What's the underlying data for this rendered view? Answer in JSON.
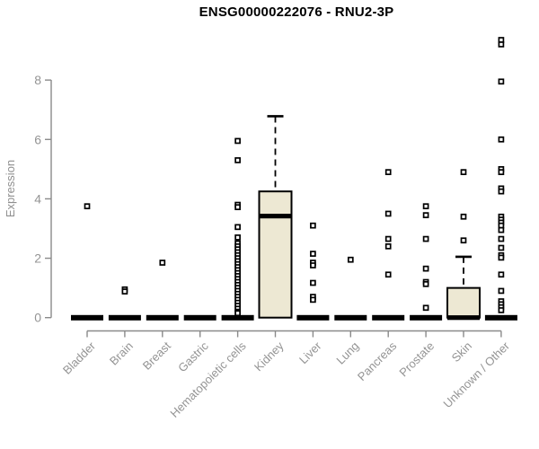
{
  "title": "ENSG00000222076 - RNU2-3P",
  "colors": {
    "axis_line": "#8a8a8a",
    "tick_text": "#949494",
    "title_text": "#000000",
    "box_fill": "#EDE8D3",
    "box_line": "#000000",
    "background": "#ffffff"
  },
  "chart_data": {
    "type": "boxplot",
    "title": "ENSG00000222076 - RNU2-3P",
    "xlabel": "",
    "ylabel": "Expression",
    "ylim": [
      0,
      9.6
    ],
    "yticks": [
      0,
      2,
      4,
      6,
      8
    ],
    "grid": false,
    "legend": "none",
    "categories": [
      "Bladder",
      "Brain",
      "Breast",
      "Gastric",
      "Hematopoietic cells",
      "Kidney",
      "Liver",
      "Lung",
      "Pancreas",
      "Prostate",
      "Skin",
      "Unknown / Other"
    ],
    "boxes": [
      {
        "category": "Bladder",
        "q1": 0,
        "median": 0,
        "q3": 0,
        "whisker_low": 0,
        "whisker_high": 0,
        "outliers": [
          3.75
        ]
      },
      {
        "category": "Brain",
        "q1": 0,
        "median": 0,
        "q3": 0,
        "whisker_low": 0,
        "whisker_high": 0,
        "outliers": [
          0.95,
          0.88
        ]
      },
      {
        "category": "Breast",
        "q1": 0,
        "median": 0,
        "q3": 0,
        "whisker_low": 0,
        "whisker_high": 0,
        "outliers": [
          1.85
        ]
      },
      {
        "category": "Gastric",
        "q1": 0,
        "median": 0,
        "q3": 0,
        "whisker_low": 0,
        "whisker_high": 0,
        "outliers": []
      },
      {
        "category": "Hematopoietic cells",
        "q1": 0,
        "median": 0,
        "q3": 0,
        "whisker_low": 0,
        "whisker_high": 0,
        "outliers": [
          5.95,
          5.3,
          3.8,
          3.72,
          3.05,
          2.7,
          2.5,
          2.4,
          2.3,
          2.2,
          2.1,
          2.0,
          1.9,
          1.8,
          1.7,
          1.6,
          1.5,
          1.4,
          1.3,
          1.2,
          1.1,
          1.0,
          0.9,
          0.8,
          0.7,
          0.6,
          0.5,
          0.4,
          0.3,
          0.2,
          0.15
        ]
      },
      {
        "category": "Kidney",
        "q1": 0,
        "median": 3.42,
        "q3": 4.25,
        "whisker_low": 0,
        "whisker_high": 6.78,
        "outliers": []
      },
      {
        "category": "Liver",
        "q1": 0,
        "median": 0,
        "q3": 0,
        "whisker_low": 0,
        "whisker_high": 0,
        "outliers": [
          3.1,
          2.15,
          1.85,
          1.76,
          1.17,
          0.7,
          0.6
        ]
      },
      {
        "category": "Lung",
        "q1": 0,
        "median": 0,
        "q3": 0,
        "whisker_low": 0,
        "whisker_high": 0,
        "outliers": [
          1.95
        ]
      },
      {
        "category": "Pancreas",
        "q1": 0,
        "median": 0,
        "q3": 0,
        "whisker_low": 0,
        "whisker_high": 0,
        "outliers": [
          4.9,
          3.5,
          2.65,
          2.4,
          1.45
        ]
      },
      {
        "category": "Prostate",
        "q1": 0,
        "median": 0,
        "q3": 0,
        "whisker_low": 0,
        "whisker_high": 0,
        "outliers": [
          3.75,
          3.45,
          2.65,
          1.65,
          1.2,
          1.13,
          0.33
        ]
      },
      {
        "category": "Skin",
        "q1": 0,
        "median": 0,
        "q3": 1.0,
        "whisker_low": 0,
        "whisker_high": 2.05,
        "outliers": [
          4.9,
          3.4,
          2.6
        ]
      },
      {
        "category": "Unknown / Other",
        "q1": 0,
        "median": 0,
        "q3": 0,
        "whisker_low": 0,
        "whisker_high": 0,
        "outliers": [
          9.35,
          9.2,
          7.95,
          6.0,
          5.0,
          4.9,
          4.35,
          4.25,
          3.4,
          3.3,
          3.2,
          3.1,
          2.95,
          2.65,
          2.35,
          2.1,
          2.02,
          1.45,
          0.9,
          0.55,
          0.45,
          0.35,
          0.25
        ]
      }
    ]
  }
}
